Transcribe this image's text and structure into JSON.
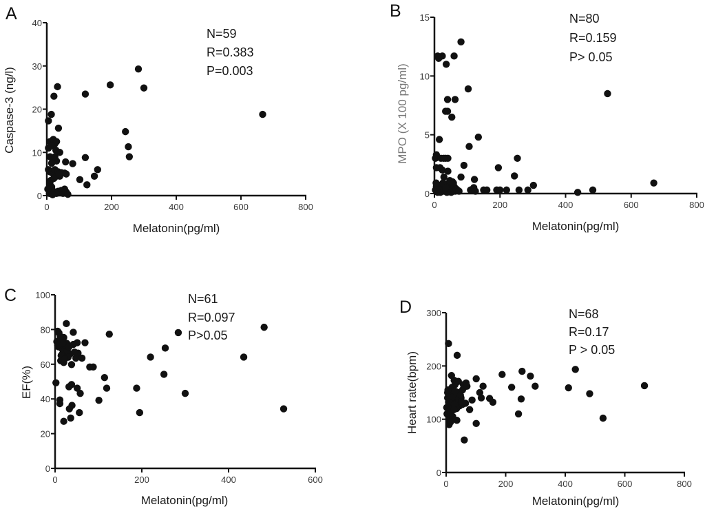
{
  "chart_data": [
    {
      "type": "scatter",
      "panel": "A",
      "xlabel": "Melatonin(pg/ml)",
      "ylabel": "Caspase-3 (ng/l)",
      "xlim": [
        0,
        800
      ],
      "ylim": [
        0,
        40
      ],
      "xticks": [
        "0",
        "200",
        "400",
        "600",
        "800"
      ],
      "yticks": [
        "0",
        "10",
        "20",
        "30",
        "40"
      ],
      "xtick_values": [
        0,
        200,
        400,
        600,
        800
      ],
      "ytick_values": [
        0,
        10,
        20,
        30,
        40
      ],
      "stats": [
        "N=59",
        "R=0.383",
        "P=0.003"
      ],
      "ylabel_color": "#1a1a1a",
      "points": [
        [
          283,
          29.3
        ],
        [
          196,
          25.6
        ],
        [
          300,
          24.9
        ],
        [
          33,
          25.2
        ],
        [
          119,
          23.5
        ],
        [
          22,
          23
        ],
        [
          667,
          18.8
        ],
        [
          14,
          18.8
        ],
        [
          5,
          17.3
        ],
        [
          36,
          15.6
        ],
        [
          243,
          14.8
        ],
        [
          252,
          11.3
        ],
        [
          255,
          9
        ],
        [
          119,
          8.8
        ],
        [
          80,
          7.4
        ],
        [
          58,
          7.8
        ],
        [
          157,
          6
        ],
        [
          147,
          4.5
        ],
        [
          102,
          3.7
        ],
        [
          124,
          2.5
        ],
        [
          5,
          11
        ],
        [
          10,
          12.5
        ],
        [
          20,
          13
        ],
        [
          25,
          12
        ],
        [
          30,
          12.5
        ],
        [
          15,
          11.5
        ],
        [
          40,
          10
        ],
        [
          10,
          9
        ],
        [
          20,
          8.5
        ],
        [
          30,
          8
        ],
        [
          25,
          9
        ],
        [
          5,
          6
        ],
        [
          10,
          5.5
        ],
        [
          20,
          5
        ],
        [
          25,
          6
        ],
        [
          30,
          4.5
        ],
        [
          35,
          5.5
        ],
        [
          40,
          4.5
        ],
        [
          45,
          5.3
        ],
        [
          55,
          5.2
        ],
        [
          60,
          5
        ],
        [
          10,
          2.5
        ],
        [
          15,
          2
        ],
        [
          20,
          1
        ],
        [
          30,
          0.5
        ],
        [
          35,
          1
        ],
        [
          45,
          1.2
        ],
        [
          50,
          0.5
        ],
        [
          55,
          1.5
        ],
        [
          60,
          0.8
        ],
        [
          65,
          0.3
        ],
        [
          8,
          0.5
        ],
        [
          18,
          0.2
        ],
        [
          12,
          3.5
        ],
        [
          22,
          4
        ],
        [
          38,
          5
        ],
        [
          3,
          1.5
        ],
        [
          15,
          7.5
        ],
        [
          28,
          10.5
        ]
      ]
    },
    {
      "type": "scatter",
      "panel": "B",
      "xlabel": "Melatonin(pg/ml)",
      "ylabel": "MPO (X 100 pg/ml)",
      "xlim": [
        0,
        800
      ],
      "ylim": [
        0,
        15
      ],
      "xticks": [
        "0",
        "200",
        "400",
        "600",
        "800"
      ],
      "yticks": [
        "0",
        "5",
        "10",
        "15"
      ],
      "xtick_values": [
        0,
        200,
        400,
        600,
        800
      ],
      "ytick_values": [
        0,
        5,
        10,
        15
      ],
      "stats": [
        "N=80",
        "R=0.159",
        "P> 0.05"
      ],
      "ylabel_color": "#777777",
      "points": [
        [
          81,
          12.9
        ],
        [
          10,
          11.7
        ],
        [
          24,
          11.7
        ],
        [
          13,
          11.5
        ],
        [
          60,
          11.7
        ],
        [
          36,
          11
        ],
        [
          103,
          8.9
        ],
        [
          528,
          8.5
        ],
        [
          40,
          8
        ],
        [
          63,
          8
        ],
        [
          34,
          7
        ],
        [
          40,
          7
        ],
        [
          53,
          6.5
        ],
        [
          15,
          4.6
        ],
        [
          134,
          4.8
        ],
        [
          106,
          4
        ],
        [
          253,
          3
        ],
        [
          6,
          3.3
        ],
        [
          3,
          3
        ],
        [
          20,
          3
        ],
        [
          34,
          3
        ],
        [
          41,
          3
        ],
        [
          90,
          2.4
        ],
        [
          195,
          2.2
        ],
        [
          6,
          2.2
        ],
        [
          24,
          2
        ],
        [
          41,
          1.9
        ],
        [
          29,
          1.4
        ],
        [
          81,
          1.4
        ],
        [
          122,
          1.2
        ],
        [
          244,
          1.5
        ],
        [
          669,
          0.9
        ],
        [
          302,
          0.7
        ],
        [
          55,
          1
        ],
        [
          110,
          0.3
        ],
        [
          120,
          0.5
        ],
        [
          125,
          0.2
        ],
        [
          150,
          0.3
        ],
        [
          160,
          0.3
        ],
        [
          190,
          0.3
        ],
        [
          200,
          0.3
        ],
        [
          220,
          0.3
        ],
        [
          258,
          0.3
        ],
        [
          285,
          0.3
        ],
        [
          437,
          0.1
        ],
        [
          483,
          0.3
        ],
        [
          3,
          0.3
        ],
        [
          6,
          0.6
        ],
        [
          9,
          0.2
        ],
        [
          12,
          0.5
        ],
        [
          15,
          0.7
        ],
        [
          18,
          0.1
        ],
        [
          21,
          0.4
        ],
        [
          24,
          0.6
        ],
        [
          27,
          0.2
        ],
        [
          30,
          0.5
        ],
        [
          33,
          0.8
        ],
        [
          36,
          0.3
        ],
        [
          39,
          0.6
        ],
        [
          42,
          0.2
        ],
        [
          45,
          0.4
        ],
        [
          48,
          0.7
        ],
        [
          51,
          0.1
        ],
        [
          54,
          0.5
        ],
        [
          57,
          0.3
        ],
        [
          60,
          0.6
        ],
        [
          63,
          0.2
        ],
        [
          66,
          0.4
        ],
        [
          70,
          0.3
        ],
        [
          75,
          0.2
        ],
        [
          5,
          0.9
        ],
        [
          14,
          0.3
        ],
        [
          26,
          0.9
        ],
        [
          38,
          0.1
        ],
        [
          47,
          1.1
        ],
        [
          58,
          0.9
        ],
        [
          17,
          2.2
        ],
        [
          28,
          3
        ],
        [
          10,
          0.1
        ],
        [
          35,
          0.5
        ]
      ]
    },
    {
      "type": "scatter",
      "panel": "C",
      "xlabel": "Melatonin(pg/ml)",
      "ylabel": "EF(%)",
      "xlim": [
        0,
        600
      ],
      "ylim": [
        0,
        100
      ],
      "xticks": [
        "0",
        "200",
        "400",
        "600"
      ],
      "yticks": [
        "0",
        "20",
        "40",
        "60",
        "80",
        "100"
      ],
      "xtick_values": [
        0,
        200,
        400,
        600
      ],
      "ytick_values": [
        0,
        20,
        40,
        60,
        80,
        100
      ],
      "stats": [
        "N=61",
        "R=0.097",
        "P>0.05"
      ],
      "ylabel_color": "#1a1a1a",
      "points": [
        [
          26,
          83.4
        ],
        [
          482,
          81.3
        ],
        [
          284,
          78.2
        ],
        [
          125,
          77.3
        ],
        [
          42,
          78.4
        ],
        [
          6,
          79
        ],
        [
          9,
          78
        ],
        [
          69,
          72.4
        ],
        [
          51,
          72.4
        ],
        [
          42,
          71.4
        ],
        [
          254,
          69.3
        ],
        [
          220,
          64.1
        ],
        [
          435,
          64.1
        ],
        [
          20,
          75.4
        ],
        [
          27,
          72
        ],
        [
          14,
          71.5
        ],
        [
          22,
          68.8
        ],
        [
          17,
          66
        ],
        [
          53,
          66.4
        ],
        [
          35,
          66
        ],
        [
          48,
          63.5
        ],
        [
          62,
          63.5
        ],
        [
          13,
          62
        ],
        [
          20,
          61
        ],
        [
          38,
          59.8
        ],
        [
          80,
          58.4
        ],
        [
          88,
          58.4
        ],
        [
          114,
          52.3
        ],
        [
          251,
          54.2
        ],
        [
          2,
          49.3
        ],
        [
          38,
          48.3
        ],
        [
          32,
          47
        ],
        [
          51,
          46.2
        ],
        [
          119,
          46.2
        ],
        [
          188,
          46.2
        ],
        [
          58,
          43.2
        ],
        [
          300,
          43.2
        ],
        [
          101,
          39.2
        ],
        [
          11,
          39.4
        ],
        [
          11,
          37.3
        ],
        [
          39,
          36.3
        ],
        [
          33,
          34.3
        ],
        [
          527,
          34.3
        ],
        [
          56,
          32.1
        ],
        [
          195,
          32.1
        ],
        [
          36,
          29
        ],
        [
          20,
          27.1
        ],
        [
          4,
          73
        ],
        [
          10,
          74
        ],
        [
          16,
          69
        ],
        [
          24,
          66
        ],
        [
          30,
          64
        ],
        [
          8,
          70
        ],
        [
          12,
          76
        ],
        [
          18,
          72
        ],
        [
          28,
          68
        ],
        [
          45,
          67
        ],
        [
          6,
          71
        ],
        [
          14,
          65
        ],
        [
          22,
          63
        ],
        [
          32,
          70
        ]
      ]
    },
    {
      "type": "scatter",
      "panel": "D",
      "xlabel": "Melatonin(pg/ml)",
      "ylabel": "Heart rate(bpm)",
      "xlim": [
        0,
        800
      ],
      "ylim": [
        0,
        300
      ],
      "xticks": [
        "0",
        "200",
        "400",
        "600",
        "800"
      ],
      "yticks": [
        "0",
        "100",
        "200",
        "300"
      ],
      "xtick_values": [
        0,
        200,
        400,
        600,
        800
      ],
      "ytick_values": [
        0,
        100,
        200,
        300
      ],
      "stats": [
        "N=68",
        "R=0.17",
        "P > 0.05"
      ],
      "ylabel_color": "#1a1a1a",
      "points": [
        [
          8,
          242
        ],
        [
          37,
          220
        ],
        [
          434,
          193.5
        ],
        [
          255,
          190
        ],
        [
          188,
          184
        ],
        [
          283,
          181
        ],
        [
          18,
          182
        ],
        [
          101,
          176
        ],
        [
          27,
          173
        ],
        [
          41,
          171
        ],
        [
          67,
          168
        ],
        [
          666,
          163
        ],
        [
          124,
          162
        ],
        [
          299,
          162
        ],
        [
          220,
          160
        ],
        [
          411,
          159
        ],
        [
          482,
          148
        ],
        [
          113,
          150
        ],
        [
          118,
          140
        ],
        [
          146,
          139
        ],
        [
          252,
          138
        ],
        [
          157,
          132
        ],
        [
          87,
          136
        ],
        [
          79,
          118
        ],
        [
          243,
          110
        ],
        [
          527,
          102
        ],
        [
          101,
          92
        ],
        [
          61,
          61
        ],
        [
          5,
          150
        ],
        [
          10,
          140
        ],
        [
          15,
          130
        ],
        [
          20,
          160
        ],
        [
          25,
          155
        ],
        [
          30,
          145
        ],
        [
          35,
          135
        ],
        [
          40,
          150
        ],
        [
          45,
          125
        ],
        [
          50,
          140
        ],
        [
          55,
          155
        ],
        [
          60,
          160
        ],
        [
          65,
          130
        ],
        [
          55,
          128
        ],
        [
          35,
          120
        ],
        [
          10,
          125
        ],
        [
          3,
          110
        ],
        [
          10,
          100
        ],
        [
          22,
          105
        ],
        [
          36,
          98
        ],
        [
          10,
          90
        ],
        [
          15,
          95
        ],
        [
          5,
          140
        ],
        [
          20,
          135
        ],
        [
          30,
          165
        ],
        [
          2,
          122
        ],
        [
          8,
          132
        ],
        [
          12,
          148
        ],
        [
          18,
          120
        ],
        [
          24,
          142
        ],
        [
          28,
          128
        ],
        [
          32,
          152
        ],
        [
          42,
          138
        ],
        [
          48,
          145
        ],
        [
          52,
          133
        ],
        [
          58,
          165
        ],
        [
          70,
          162
        ],
        [
          6,
          155
        ],
        [
          16,
          112
        ],
        [
          26,
          118
        ]
      ]
    }
  ]
}
